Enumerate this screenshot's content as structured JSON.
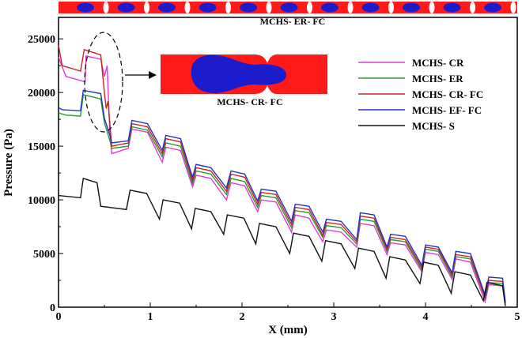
{
  "chart_data": {
    "type": "line",
    "xlabel": "X (mm)",
    "ylabel": "Pressure (Pa)",
    "xlim": [
      0,
      5
    ],
    "ylim": [
      0,
      27000
    ],
    "xticks": [
      0,
      1,
      2,
      3,
      4,
      5
    ],
    "yticks": [
      0,
      5000,
      10000,
      15000,
      20000,
      25000
    ],
    "ytick_labels": [
      "0",
      "5000",
      "10000",
      "15000",
      "20000",
      "25000"
    ],
    "grid": false,
    "legend_position": "top-right",
    "series": [
      {
        "name": "MCHS- CR",
        "color": "#e23ad8",
        "x": [
          0.0,
          0.08,
          0.29,
          0.3,
          0.46,
          0.5,
          0.53,
          0.56,
          0.58,
          0.76,
          0.8,
          0.97,
          1.13,
          1.17,
          1.33,
          1.46,
          1.5,
          1.66,
          1.83,
          1.88,
          2.03,
          2.17,
          2.21,
          2.37,
          2.54,
          2.58,
          2.73,
          2.88,
          2.92,
          3.08,
          3.25,
          3.29,
          3.44,
          3.58,
          3.62,
          3.78,
          3.96,
          4.0,
          4.14,
          4.29,
          4.33,
          4.49,
          4.65,
          4.69,
          4.84,
          4.87
        ],
        "y": [
          23300,
          21500,
          21000,
          23400,
          23100,
          21500,
          22500,
          16000,
          14300,
          14800,
          16600,
          16300,
          13500,
          14900,
          14600,
          11200,
          12300,
          12000,
          10000,
          11600,
          11300,
          8900,
          10000,
          9800,
          7000,
          8600,
          8300,
          6100,
          7200,
          7000,
          5600,
          7800,
          7600,
          4900,
          6000,
          5800,
          3300,
          5100,
          4900,
          2600,
          4500,
          4200,
          500,
          2100,
          2000,
          300
        ]
      },
      {
        "name": "MCHS- ER",
        "color": "#2a9a2a",
        "x": [
          0.0,
          0.08,
          0.24,
          0.27,
          0.46,
          0.5,
          0.56,
          0.58,
          0.76,
          0.8,
          0.97,
          1.13,
          1.17,
          1.33,
          1.46,
          1.5,
          1.66,
          1.83,
          1.88,
          2.03,
          2.17,
          2.21,
          2.37,
          2.54,
          2.58,
          2.73,
          2.88,
          2.92,
          3.08,
          3.25,
          3.29,
          3.44,
          3.58,
          3.62,
          3.78,
          3.96,
          4.0,
          4.14,
          4.29,
          4.33,
          4.49,
          4.65,
          4.69,
          4.84,
          4.87
        ],
        "y": [
          18100,
          17900,
          17800,
          19800,
          19400,
          17200,
          15500,
          14800,
          15000,
          16800,
          16500,
          14000,
          15300,
          15000,
          11500,
          12700,
          12400,
          10500,
          12000,
          11700,
          9300,
          10400,
          10200,
          7400,
          9000,
          8800,
          6500,
          7600,
          7400,
          5900,
          8200,
          8000,
          5200,
          6300,
          6100,
          3500,
          5400,
          5200,
          2800,
          4700,
          4500,
          800,
          2300,
          2200,
          400
        ]
      },
      {
        "name": "MCHS- CR- FC",
        "color": "#cc2222",
        "x": [
          0.0,
          0.04,
          0.24,
          0.28,
          0.46,
          0.5,
          0.52,
          0.54,
          0.56,
          0.58,
          0.76,
          0.8,
          0.97,
          1.13,
          1.17,
          1.33,
          1.46,
          1.5,
          1.66,
          1.83,
          1.88,
          2.03,
          2.17,
          2.21,
          2.37,
          2.54,
          2.58,
          2.73,
          2.88,
          2.92,
          3.08,
          3.25,
          3.29,
          3.44,
          3.58,
          3.62,
          3.78,
          3.96,
          4.0,
          4.14,
          4.29,
          4.33,
          4.49,
          4.65,
          4.69,
          4.84,
          4.87
        ],
        "y": [
          24400,
          22500,
          22000,
          24000,
          23500,
          20000,
          18500,
          19200,
          17000,
          15000,
          15300,
          17100,
          16800,
          14300,
          15700,
          15400,
          11800,
          13000,
          12700,
          10800,
          12400,
          12100,
          9600,
          10700,
          10500,
          7700,
          9300,
          9100,
          6700,
          7900,
          7700,
          6100,
          8500,
          8300,
          5400,
          6500,
          6300,
          3700,
          5600,
          5400,
          3000,
          4900,
          4700,
          900,
          2500,
          2400,
          400
        ]
      },
      {
        "name": "MCHS- EF- FC",
        "color": "#2233cc",
        "x": [
          0.0,
          0.04,
          0.24,
          0.27,
          0.46,
          0.5,
          0.56,
          0.58,
          0.76,
          0.8,
          0.97,
          1.13,
          1.17,
          1.33,
          1.46,
          1.5,
          1.66,
          1.83,
          1.88,
          2.03,
          2.17,
          2.21,
          2.37,
          2.54,
          2.58,
          2.73,
          2.88,
          2.92,
          3.08,
          3.25,
          3.29,
          3.44,
          3.58,
          3.62,
          3.78,
          3.96,
          4.0,
          4.14,
          4.29,
          4.33,
          4.49,
          4.65,
          4.69,
          4.84,
          4.87
        ],
        "y": [
          18600,
          18400,
          18300,
          20200,
          19900,
          17600,
          16000,
          15300,
          15500,
          17400,
          17100,
          14600,
          16000,
          15700,
          12100,
          13300,
          13000,
          11100,
          12700,
          12400,
          9900,
          11000,
          10800,
          8000,
          9600,
          9400,
          7000,
          8200,
          8000,
          6300,
          8800,
          8600,
          5600,
          6800,
          6600,
          3900,
          5800,
          5600,
          3200,
          5200,
          5000,
          1100,
          2800,
          2700,
          500
        ]
      },
      {
        "name": "MCHS- S",
        "color": "#111111",
        "x": [
          0.0,
          0.24,
          0.27,
          0.42,
          0.46,
          0.74,
          0.78,
          0.96,
          1.1,
          1.14,
          1.32,
          1.45,
          1.49,
          1.66,
          1.8,
          1.84,
          2.02,
          2.15,
          2.19,
          2.37,
          2.52,
          2.56,
          2.73,
          2.87,
          2.91,
          3.08,
          3.23,
          3.27,
          3.44,
          3.57,
          3.61,
          3.78,
          3.94,
          3.98,
          4.14,
          4.28,
          4.32,
          4.49,
          4.63,
          4.67,
          4.84,
          4.87
        ],
        "y": [
          10400,
          10200,
          12000,
          11600,
          9400,
          9100,
          10900,
          10600,
          8200,
          10000,
          9700,
          7300,
          9200,
          8900,
          6800,
          8600,
          8300,
          5900,
          7800,
          7500,
          5000,
          6900,
          6600,
          4300,
          6200,
          5900,
          3600,
          5500,
          5200,
          2700,
          4700,
          4400,
          2200,
          4200,
          3900,
          1300,
          3300,
          3000,
          600,
          2300,
          2000,
          100
        ]
      }
    ]
  },
  "annotations": {
    "top_geometry_label": "MCHS- ER- FC",
    "inset_geometry_label": "MCHS- CR- FC"
  }
}
